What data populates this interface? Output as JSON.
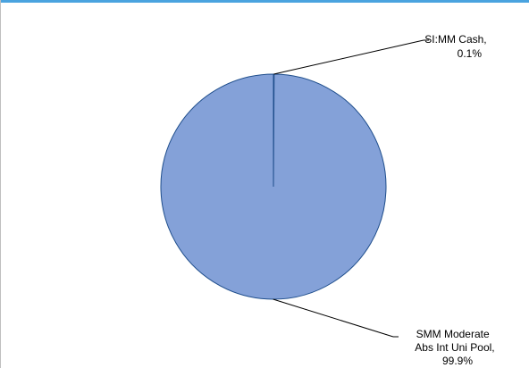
{
  "chart_data": {
    "type": "pie",
    "title": "",
    "slices": [
      {
        "name": "SI:MM Cash",
        "value": 0.1,
        "label_lines": [
          "SI:MM Cash,",
          "0.1%"
        ]
      },
      {
        "name": "SMM Moderate Abs Int Uni Pool",
        "value": 99.9,
        "label_lines": [
          "SMM Moderate",
          "Abs Int Uni Pool,",
          "99.9%"
        ]
      }
    ],
    "legend": "none",
    "colors": {
      "fill": "#84a1d8",
      "stroke": "#1f4e8c",
      "leader": "#000000",
      "accent": "#4aa3df"
    }
  }
}
